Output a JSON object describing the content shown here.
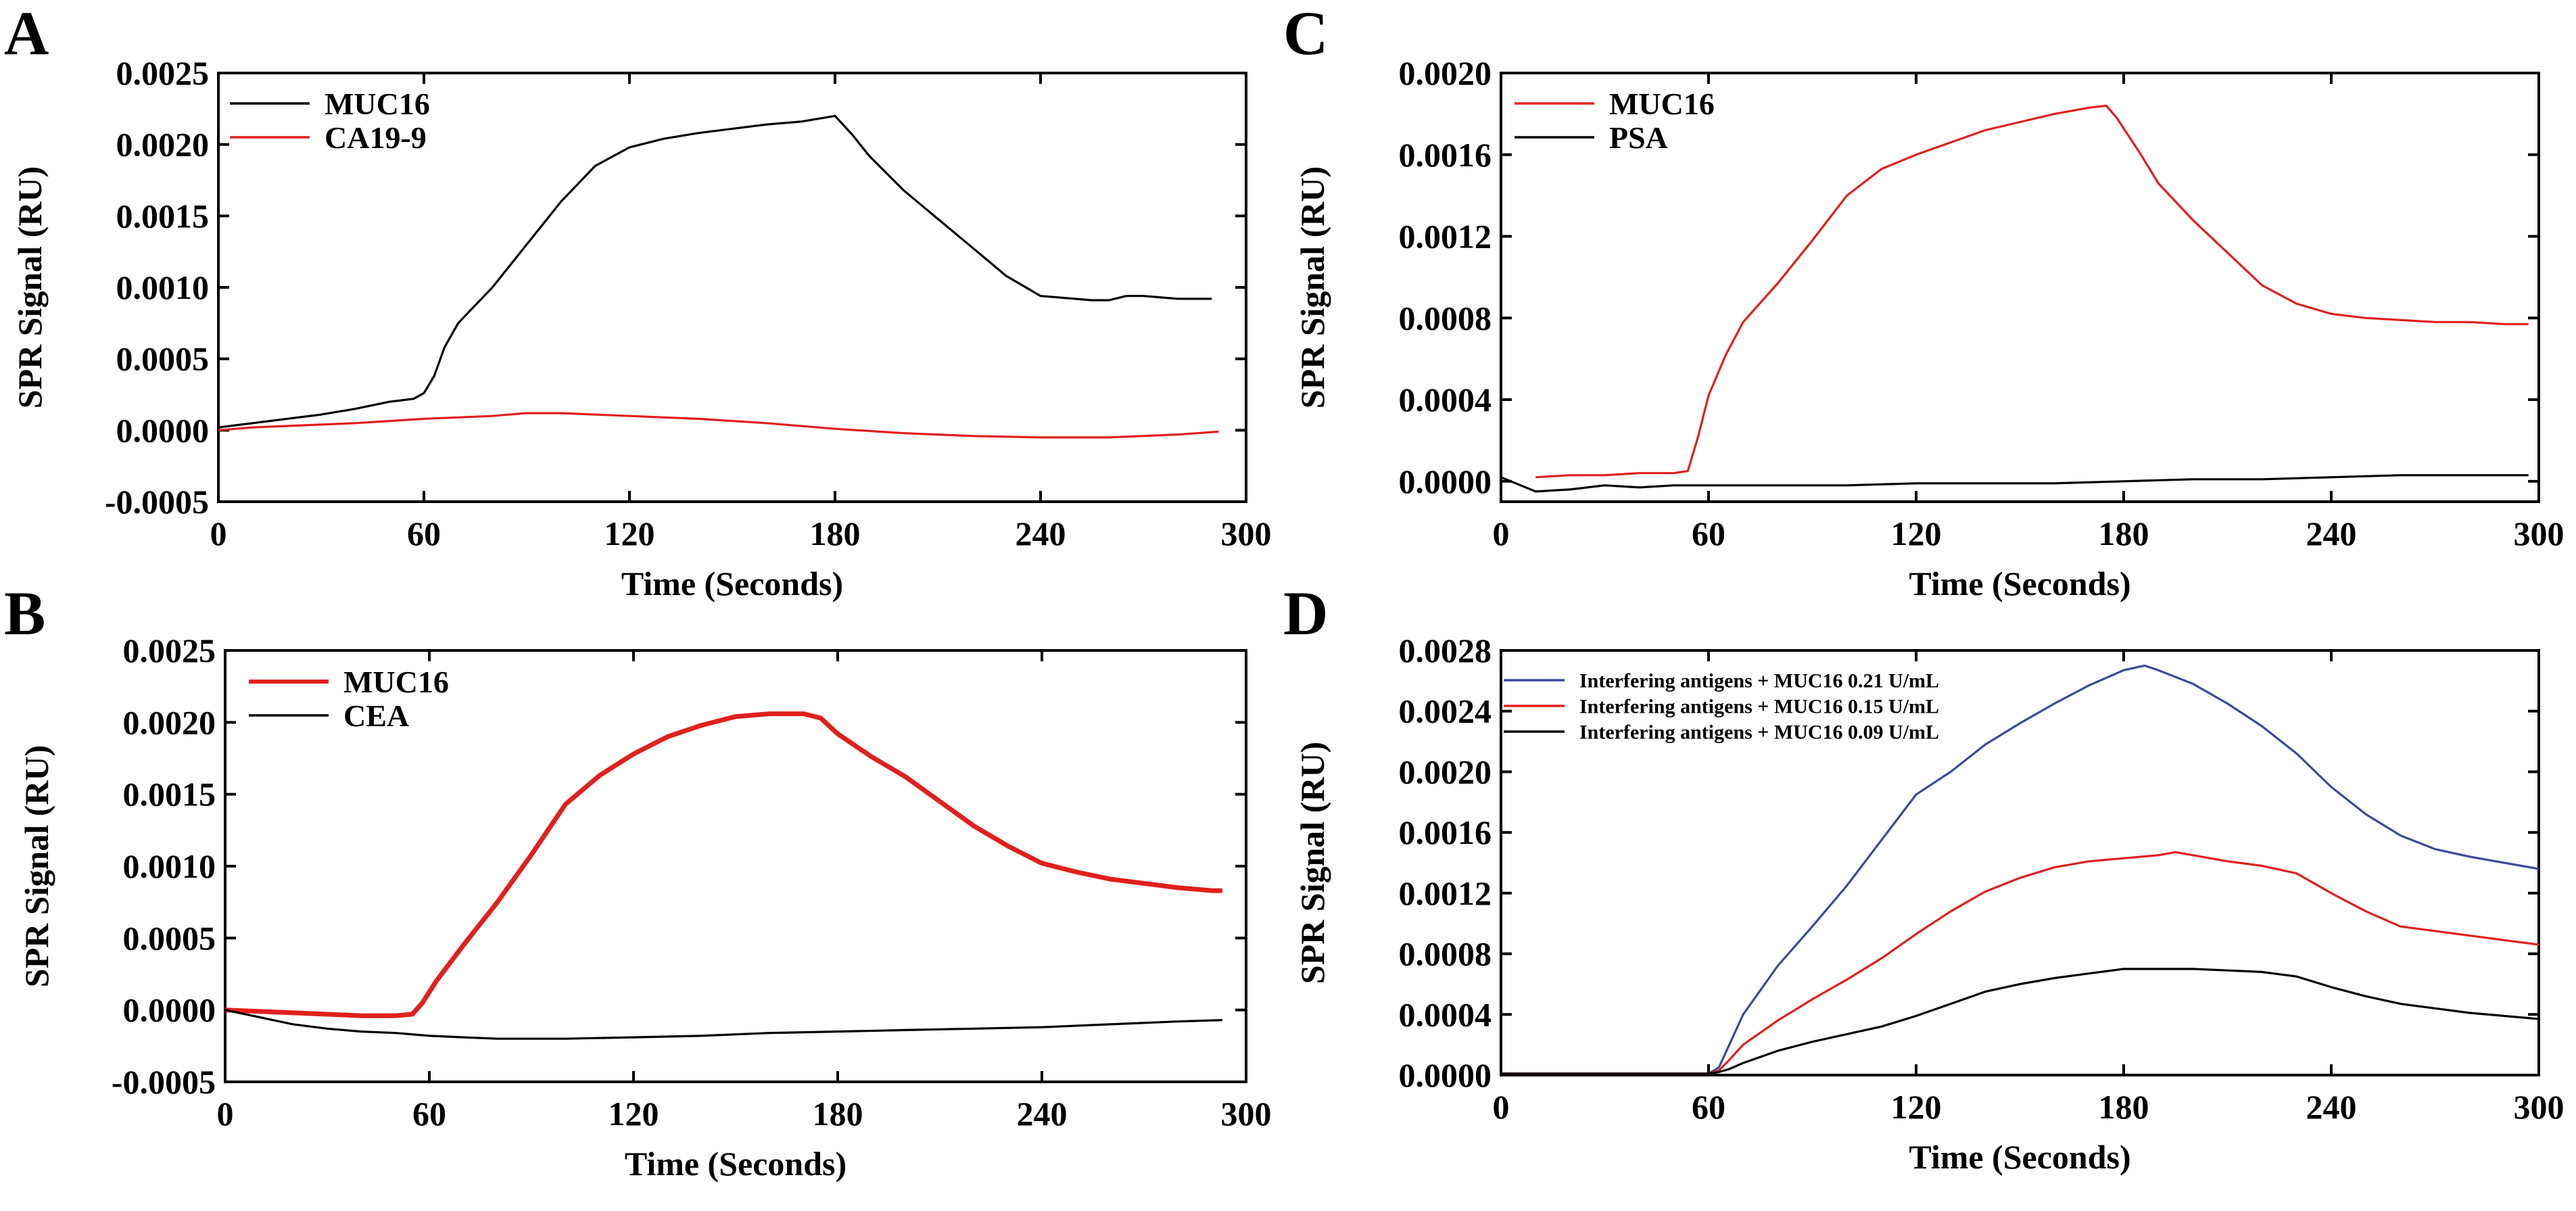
{
  "chart_data": [
    {
      "panel": "A",
      "type": "line",
      "xlabel": "Time (Seconds)",
      "ylabel": "SPR Signal (RU)",
      "xlim": [
        0,
        300
      ],
      "ylim": [
        -0.0005,
        0.0025
      ],
      "xticks": [
        0,
        60,
        120,
        180,
        240,
        300
      ],
      "xtick_labels": [
        "0",
        "60",
        "120",
        "180",
        "240",
        "300"
      ],
      "yticks": [
        -0.0005,
        0,
        0.0005,
        0.001,
        0.0015,
        0.002,
        0.0025
      ],
      "ytick_labels": [
        "-0.0005",
        "0.0000",
        "0.0005",
        "0.0010",
        "0.0015",
        "0.0020",
        "0.0025"
      ],
      "legend_position": "top-left",
      "series": [
        {
          "name": "MUC16",
          "color": "#000000",
          "x": [
            0,
            10,
            20,
            30,
            40,
            50,
            57,
            60,
            63,
            66,
            70,
            80,
            90,
            100,
            110,
            120,
            130,
            140,
            150,
            160,
            170,
            180,
            185,
            190,
            200,
            210,
            220,
            230,
            240,
            250,
            255,
            260,
            265,
            270,
            280,
            290
          ],
          "y": [
            2e-05,
            5e-05,
            8e-05,
            0.00011,
            0.00015,
            0.0002,
            0.00022,
            0.00026,
            0.00038,
            0.00058,
            0.00075,
            0.001,
            0.0013,
            0.0016,
            0.00185,
            0.00198,
            0.00204,
            0.00208,
            0.00211,
            0.00214,
            0.00216,
            0.0022,
            0.00207,
            0.00192,
            0.00168,
            0.00148,
            0.00128,
            0.00108,
            0.00094,
            0.00092,
            0.00091,
            0.00091,
            0.00094,
            0.00094,
            0.00092,
            0.00092
          ]
        },
        {
          "name": "CA19-9",
          "color": "#e0201c",
          "x": [
            0,
            10,
            20,
            40,
            60,
            80,
            90,
            100,
            120,
            140,
            160,
            180,
            200,
            220,
            240,
            260,
            280,
            292
          ],
          "y": [
            0,
            2e-05,
            3e-05,
            5e-05,
            8e-05,
            0.0001,
            0.00012,
            0.00012,
            0.0001,
            8e-05,
            5e-05,
            1e-05,
            -2e-05,
            -4e-05,
            -5e-05,
            -5e-05,
            -3e-05,
            -1e-05
          ]
        }
      ]
    },
    {
      "panel": "B",
      "type": "line",
      "xlabel": "Time (Seconds)",
      "ylabel": "SPR Signal (RU)",
      "xlim": [
        0,
        300
      ],
      "ylim": [
        -0.0005,
        0.0025
      ],
      "xticks": [
        0,
        60,
        120,
        180,
        240,
        300
      ],
      "xtick_labels": [
        "0",
        "60",
        "120",
        "180",
        "240",
        "300"
      ],
      "yticks": [
        -0.0005,
        0,
        0.0005,
        0.001,
        0.0015,
        0.002,
        0.0025
      ],
      "ytick_labels": [
        "-0.0005",
        "0.0000",
        "0.0005",
        "0.0010",
        "0.0015",
        "0.0020",
        "0.0025"
      ],
      "legend_position": "top-left",
      "series": [
        {
          "name": "MUC16",
          "color": "#e0201c",
          "x": [
            0,
            10,
            20,
            30,
            40,
            50,
            55,
            58,
            62,
            70,
            80,
            90,
            100,
            110,
            120,
            130,
            140,
            150,
            160,
            170,
            175,
            180,
            190,
            200,
            210,
            220,
            230,
            240,
            250,
            260,
            270,
            280,
            290,
            293
          ],
          "y": [
            0,
            -1e-05,
            -2e-05,
            -3e-05,
            -4e-05,
            -4e-05,
            -3e-05,
            5e-05,
            0.0002,
            0.00045,
            0.00075,
            0.00108,
            0.00143,
            0.00163,
            0.00178,
            0.0019,
            0.00198,
            0.00204,
            0.00206,
            0.00206,
            0.00203,
            0.00192,
            0.00176,
            0.00162,
            0.00145,
            0.00128,
            0.00114,
            0.00102,
            0.00096,
            0.00091,
            0.00088,
            0.00085,
            0.00083,
            0.00083
          ]
        },
        {
          "name": "CEA",
          "color": "#000000",
          "x": [
            0,
            10,
            20,
            30,
            40,
            50,
            60,
            70,
            80,
            90,
            100,
            120,
            140,
            160,
            180,
            200,
            220,
            240,
            260,
            280,
            293
          ],
          "y": [
            0,
            -5e-05,
            -0.0001,
            -0.00013,
            -0.00015,
            -0.00016,
            -0.00018,
            -0.00019,
            -0.0002,
            -0.0002,
            -0.0002,
            -0.00019,
            -0.00018,
            -0.00016,
            -0.00015,
            -0.00014,
            -0.00013,
            -0.00012,
            -0.0001,
            -8e-05,
            -7e-05
          ]
        }
      ]
    },
    {
      "panel": "C",
      "type": "line",
      "xlabel": "Time (Seconds)",
      "ylabel": "SPR Signal (RU)",
      "xlim": [
        0,
        300
      ],
      "ylim": [
        -0.0001,
        0.002
      ],
      "xticks": [
        0,
        60,
        120,
        180,
        240,
        300
      ],
      "xtick_labels": [
        "0",
        "60",
        "120",
        "180",
        "240",
        "300"
      ],
      "yticks": [
        0,
        0.0004,
        0.0008,
        0.0012,
        0.0016,
        0.002
      ],
      "ytick_labels": [
        "0.0000",
        "0.0004",
        "0.0008",
        "0.0012",
        "0.0016",
        "0.0020"
      ],
      "legend_position": "top-left",
      "series": [
        {
          "name": "MUC16",
          "color": "#e0201c",
          "x": [
            10,
            20,
            30,
            40,
            50,
            54,
            57,
            60,
            65,
            70,
            80,
            90,
            100,
            110,
            120,
            130,
            140,
            150,
            160,
            170,
            175,
            178,
            185,
            190,
            200,
            210,
            220,
            230,
            240,
            250,
            260,
            270,
            280,
            290,
            297
          ],
          "y": [
            2e-05,
            3e-05,
            3e-05,
            4e-05,
            4e-05,
            5e-05,
            0.00022,
            0.00042,
            0.00062,
            0.00078,
            0.00097,
            0.00118,
            0.0014,
            0.00153,
            0.0016,
            0.00166,
            0.00172,
            0.00176,
            0.0018,
            0.00183,
            0.00184,
            0.00178,
            0.0016,
            0.00146,
            0.00128,
            0.00112,
            0.00096,
            0.00087,
            0.00082,
            0.0008,
            0.00079,
            0.00078,
            0.00078,
            0.00077,
            0.00077
          ]
        },
        {
          "name": "PSA",
          "color": "#000000",
          "x": [
            0,
            10,
            20,
            30,
            40,
            50,
            60,
            80,
            100,
            120,
            140,
            160,
            180,
            200,
            220,
            240,
            260,
            280,
            297
          ],
          "y": [
            2e-05,
            -5e-05,
            -4e-05,
            -2e-05,
            -3e-05,
            -2e-05,
            -2e-05,
            -2e-05,
            -2e-05,
            -1e-05,
            -1e-05,
            -1e-05,
            0,
            1e-05,
            1e-05,
            2e-05,
            3e-05,
            3e-05,
            3e-05
          ]
        }
      ]
    },
    {
      "panel": "D",
      "type": "line",
      "xlabel": "Time (Seconds)",
      "ylabel": "SPR Signal (RU)",
      "xlim": [
        0,
        300
      ],
      "ylim": [
        0,
        0.0028
      ],
      "xticks": [
        0,
        60,
        120,
        180,
        240,
        300
      ],
      "xtick_labels": [
        "0",
        "60",
        "120",
        "180",
        "240",
        "300"
      ],
      "yticks": [
        0,
        0.0004,
        0.0008,
        0.0012,
        0.0016,
        0.002,
        0.0024,
        0.0028
      ],
      "ytick_labels": [
        "0.0000",
        "0.0004",
        "0.0008",
        "0.0012",
        "0.0016",
        "0.0020",
        "0.0024",
        "0.0028"
      ],
      "legend_position": "top-left",
      "series": [
        {
          "name": "Interfering antigens + MUC16 0.21 U/mL",
          "color": "#3a4aa0",
          "x": [
            0,
            30,
            60,
            63,
            66,
            70,
            80,
            90,
            100,
            110,
            120,
            130,
            140,
            150,
            160,
            170,
            180,
            186,
            190,
            200,
            210,
            220,
            230,
            240,
            250,
            260,
            270,
            280,
            290,
            300
          ],
          "y": [
            1e-05,
            1e-05,
            1e-05,
            5e-05,
            0.0002,
            0.0004,
            0.00072,
            0.00098,
            0.00125,
            0.00155,
            0.00185,
            0.002,
            0.00218,
            0.00232,
            0.00245,
            0.00257,
            0.00267,
            0.0027,
            0.00267,
            0.00258,
            0.00245,
            0.0023,
            0.00212,
            0.0019,
            0.00172,
            0.00158,
            0.00149,
            0.00144,
            0.0014,
            0.00136
          ]
        },
        {
          "name": "Interfering antigens + MUC16 0.15 U/mL",
          "color": "#e0201c",
          "x": [
            0,
            30,
            60,
            63,
            66,
            70,
            80,
            90,
            100,
            110,
            120,
            130,
            140,
            150,
            160,
            170,
            180,
            190,
            195,
            200,
            210,
            220,
            230,
            240,
            250,
            260,
            270,
            280,
            290,
            300
          ],
          "y": [
            1e-05,
            1e-05,
            1e-05,
            3e-05,
            0.0001,
            0.0002,
            0.00036,
            0.0005,
            0.00063,
            0.00077,
            0.00093,
            0.00108,
            0.00121,
            0.0013,
            0.00137,
            0.00141,
            0.00143,
            0.00145,
            0.00147,
            0.00145,
            0.00141,
            0.00138,
            0.00133,
            0.0012,
            0.00108,
            0.00098,
            0.00095,
            0.00092,
            0.00089,
            0.00086
          ]
        },
        {
          "name": "Interfering antigens + MUC16 0.09 U/mL",
          "color": "#000000",
          "x": [
            0,
            30,
            60,
            63,
            66,
            70,
            80,
            90,
            100,
            110,
            120,
            130,
            140,
            150,
            160,
            170,
            180,
            190,
            200,
            210,
            220,
            230,
            240,
            250,
            260,
            270,
            280,
            290,
            300
          ],
          "y": [
            1e-05,
            1e-05,
            1e-05,
            2e-05,
            4e-05,
            8e-05,
            0.00016,
            0.00022,
            0.00027,
            0.00032,
            0.00039,
            0.00047,
            0.00055,
            0.0006,
            0.00064,
            0.00067,
            0.0007,
            0.0007,
            0.0007,
            0.00069,
            0.00068,
            0.00065,
            0.00058,
            0.00052,
            0.00047,
            0.00044,
            0.00041,
            0.00039,
            0.00037
          ]
        }
      ]
    }
  ]
}
